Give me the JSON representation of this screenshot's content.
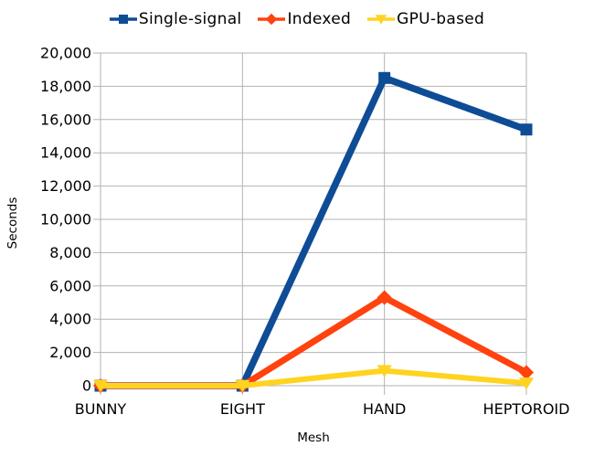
{
  "chart_data": {
    "type": "line",
    "title": "",
    "xlabel": "Mesh",
    "ylabel": "Seconds",
    "categories": [
      "BUNNY",
      "EIGHT",
      "HAND",
      "HEPTOROID"
    ],
    "series": [
      {
        "name": "Single-signal",
        "color": "#0E4C96",
        "marker": "square",
        "values": [
          0,
          0,
          18500,
          15400
        ]
      },
      {
        "name": "Indexed",
        "color": "#FF420E",
        "marker": "diamond",
        "values": [
          0,
          0,
          5300,
          800
        ]
      },
      {
        "name": "GPU-based",
        "color": "#FFD320",
        "marker": "triangle-down",
        "values": [
          0,
          0,
          900,
          150
        ]
      }
    ],
    "ylim": [
      0,
      20000
    ],
    "ytick_step": 2000,
    "ytick_labels": [
      "0",
      "2,000",
      "4,000",
      "6,000",
      "8,000",
      "10,000",
      "12,000",
      "14,000",
      "16,000",
      "18,000",
      "20,000"
    ],
    "grid": true,
    "legend_position": "top",
    "axis_color": "#B3B3B3",
    "text_color": "#000000",
    "background": "#FFFFFF"
  }
}
